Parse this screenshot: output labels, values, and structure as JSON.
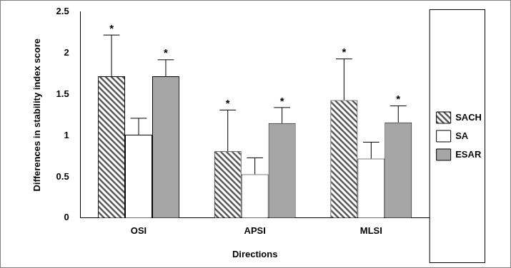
{
  "chart_data": {
    "type": "bar",
    "x_label": "Directions",
    "y_label": "Differences in stability index score",
    "categories": [
      "OSI",
      "APSI",
      "MLSI"
    ],
    "series": [
      {
        "name": "SACH",
        "color": "#595959",
        "values": [
          1.72,
          0.81,
          1.43
        ],
        "errors": [
          0.5,
          0.5,
          0.5
        ],
        "annotations": [
          "*",
          "*",
          "*"
        ]
      },
      {
        "name": "SA",
        "color": "#ffffff",
        "values": [
          1.01,
          0.53,
          0.72
        ],
        "errors": [
          0.2,
          0.2,
          0.2
        ]
      },
      {
        "name": "ESAR",
        "color": "#a6a6a6",
        "values": [
          1.72,
          1.15,
          1.16
        ],
        "errors": [
          0.2,
          0.19,
          0.2
        ],
        "annotations": [
          "*",
          "*",
          "*"
        ]
      }
    ],
    "ylim": [
      0,
      2.5
    ],
    "yticks": [
      0,
      0.5,
      1,
      1.5,
      2,
      2.5
    ],
    "grid": false,
    "legend": "right"
  }
}
